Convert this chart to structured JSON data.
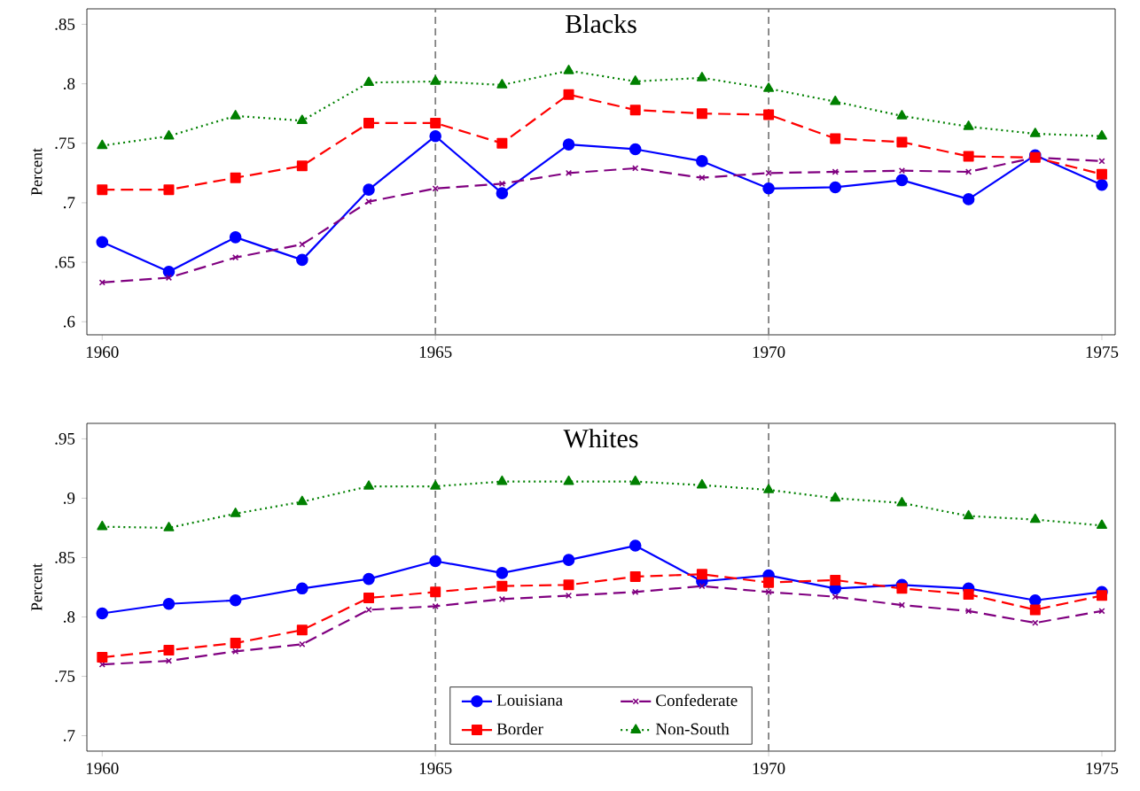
{
  "chart_data": [
    {
      "type": "line",
      "title": "Blacks",
      "ylabel": "Percent",
      "x": [
        1960,
        1961,
        1962,
        1963,
        1964,
        1965,
        1966,
        1967,
        1968,
        1969,
        1970,
        1971,
        1972,
        1973,
        1974,
        1975
      ],
      "xlim": [
        1959.77,
        1975.2
      ],
      "xticks": [
        1960,
        1965,
        1970,
        1975
      ],
      "ylim": [
        0.589,
        0.863
      ],
      "yticks": [
        {
          "value": 0.6,
          "label": ".6"
        },
        {
          "value": 0.65,
          "label": ".65"
        },
        {
          "value": 0.7,
          "label": ".7"
        },
        {
          "value": 0.75,
          "label": ".75"
        },
        {
          "value": 0.8,
          "label": ".8"
        },
        {
          "value": 0.85,
          "label": ".85"
        }
      ],
      "grid": false,
      "legend": false,
      "ref_lines": [
        {
          "axis": "x",
          "value": 1965,
          "color": "#808080",
          "line_style": "dashed"
        },
        {
          "axis": "x",
          "value": 1970,
          "color": "#808080",
          "line_style": "dashed"
        }
      ],
      "series": [
        {
          "color": "#0000ff",
          "marker": "circle",
          "line_style": "solid",
          "values": [
            0.667,
            0.642,
            0.671,
            0.652,
            0.711,
            0.756,
            0.708,
            0.749,
            0.745,
            0.735,
            0.712,
            0.713,
            0.719,
            0.703,
            0.74,
            0.715
          ]
        },
        {
          "color": "#800080",
          "marker": "cross",
          "line_style": "dashed",
          "values": [
            0.633,
            0.637,
            0.654,
            0.665,
            0.701,
            0.712,
            0.716,
            0.725,
            0.729,
            0.721,
            0.725,
            0.726,
            0.727,
            0.726,
            0.738,
            0.735
          ]
        },
        {
          "color": "#ff0000",
          "marker": "square",
          "line_style": "dashed",
          "values": [
            0.711,
            0.711,
            0.721,
            0.731,
            0.767,
            0.767,
            0.75,
            0.791,
            0.778,
            0.775,
            0.774,
            0.754,
            0.751,
            0.739,
            0.738,
            0.724
          ]
        },
        {
          "color": "#008000",
          "marker": "triangle",
          "line_style": "dotted",
          "values": [
            0.748,
            0.756,
            0.773,
            0.769,
            0.801,
            0.802,
            0.799,
            0.811,
            0.802,
            0.805,
            0.796,
            0.785,
            0.773,
            0.764,
            0.758,
            0.756
          ]
        }
      ]
    },
    {
      "type": "line",
      "title": "Whites",
      "ylabel": "Percent",
      "x": [
        1960,
        1961,
        1962,
        1963,
        1964,
        1965,
        1966,
        1967,
        1968,
        1969,
        1970,
        1971,
        1972,
        1973,
        1974,
        1975
      ],
      "xlim": [
        1959.77,
        1975.2
      ],
      "xticks": [
        1960,
        1965,
        1970,
        1975
      ],
      "ylim": [
        0.687,
        0.963
      ],
      "yticks": [
        {
          "value": 0.7,
          "label": ".7"
        },
        {
          "value": 0.75,
          "label": ".75"
        },
        {
          "value": 0.8,
          "label": ".8"
        },
        {
          "value": 0.85,
          "label": ".85"
        },
        {
          "value": 0.9,
          "label": ".9"
        },
        {
          "value": 0.95,
          "label": ".95"
        }
      ],
      "grid": false,
      "legend": "bottom",
      "ref_lines": [
        {
          "axis": "x",
          "value": 1965,
          "color": "#808080",
          "line_style": "dashed"
        },
        {
          "axis": "x",
          "value": 1970,
          "color": "#808080",
          "line_style": "dashed"
        }
      ],
      "series": [
        {
          "name": "Louisiana",
          "color": "#0000ff",
          "marker": "circle",
          "line_style": "solid",
          "values": [
            0.803,
            0.811,
            0.814,
            0.824,
            0.832,
            0.847,
            0.837,
            0.848,
            0.86,
            0.83,
            0.835,
            0.824,
            0.827,
            0.824,
            0.814,
            0.821
          ]
        },
        {
          "name": "Confederate",
          "color": "#800080",
          "marker": "cross",
          "line_style": "dashed",
          "values": [
            0.76,
            0.763,
            0.771,
            0.777,
            0.806,
            0.809,
            0.815,
            0.818,
            0.821,
            0.826,
            0.821,
            0.817,
            0.81,
            0.805,
            0.795,
            0.805
          ]
        },
        {
          "name": "Border",
          "color": "#ff0000",
          "marker": "square",
          "line_style": "dashed",
          "values": [
            0.766,
            0.772,
            0.778,
            0.789,
            0.816,
            0.821,
            0.826,
            0.827,
            0.834,
            0.836,
            0.829,
            0.831,
            0.824,
            0.819,
            0.806,
            0.818
          ]
        },
        {
          "name": "Non-South",
          "color": "#008000",
          "marker": "triangle",
          "line_style": "dotted",
          "values": [
            0.876,
            0.875,
            0.887,
            0.897,
            0.91,
            0.91,
            0.914,
            0.914,
            0.914,
            0.911,
            0.907,
            0.9,
            0.896,
            0.885,
            0.882,
            0.877
          ]
        }
      ]
    }
  ]
}
